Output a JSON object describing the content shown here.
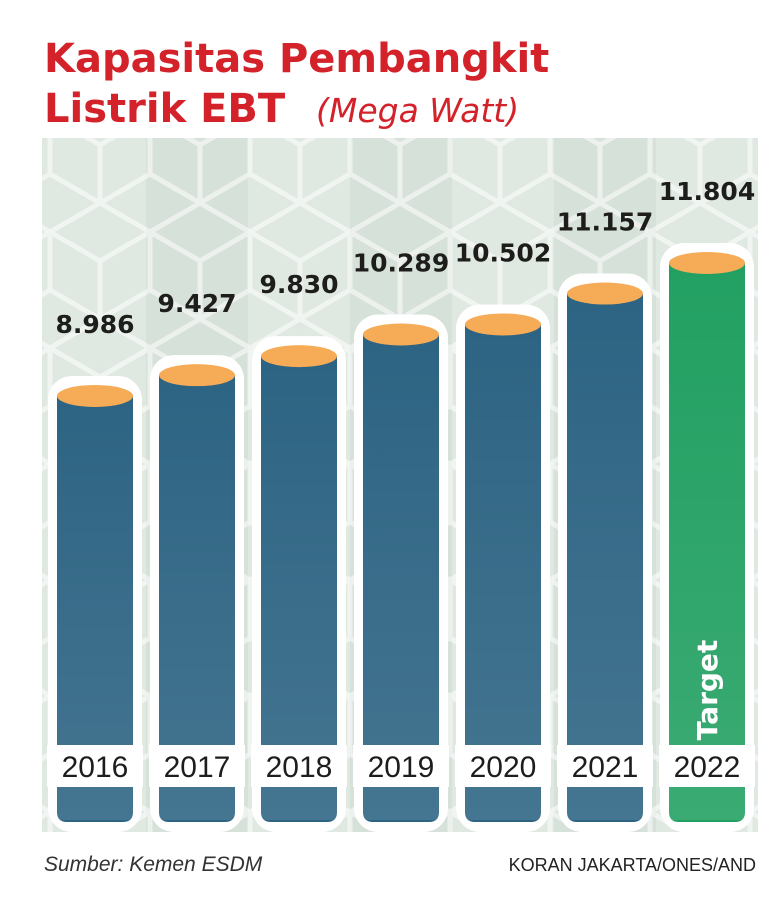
{
  "chart_data": {
    "type": "bar",
    "title": "Kapasitas Pembangkit",
    "title_line2": "Listrik EBT",
    "unit": "(Mega Watt)",
    "categories": [
      "2016",
      "2017",
      "2018",
      "2019",
      "2020",
      "2021",
      "2022"
    ],
    "values": [
      8986,
      9427,
      9830,
      10289,
      10502,
      11157,
      11804
    ],
    "value_labels": [
      "8.986",
      "9.427",
      "9.830",
      "10.289",
      "10.502",
      "11.157",
      "11.804"
    ],
    "colors": [
      "#2d6483",
      "#2d6483",
      "#2d6483",
      "#2d6483",
      "#2d6483",
      "#2d6483",
      "#22a062"
    ],
    "top_color": "#f6ab56",
    "annotation": "Target",
    "source": "Sumber: Kemen ESDM",
    "credit": "KORAN JAKARTA/ONES/AND"
  }
}
